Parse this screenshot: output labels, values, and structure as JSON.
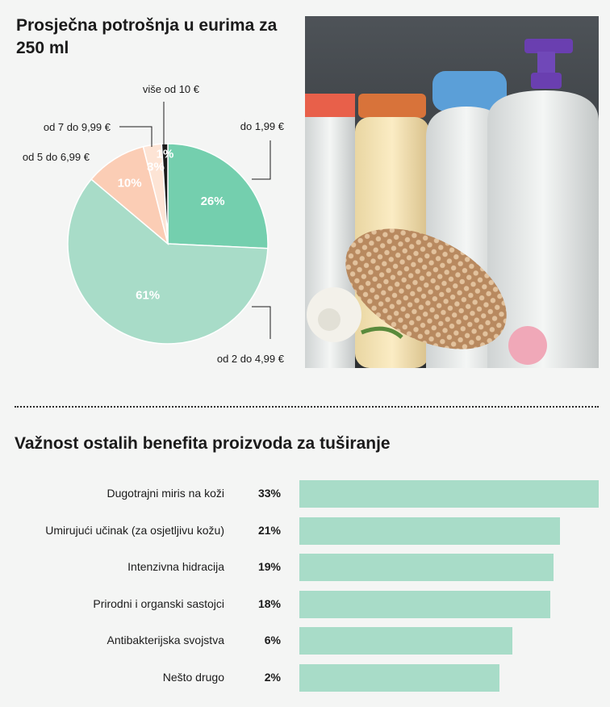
{
  "chart_data": [
    {
      "type": "pie",
      "title": "Prosječna potrošnja u eurima za 250 ml",
      "slices": [
        {
          "label": "do 1,99 €",
          "value": 26,
          "display": "26%",
          "color": "#74cfae"
        },
        {
          "label": "od 2 do 4,99 €",
          "value": 61,
          "display": "61%",
          "color": "#a8dcc8"
        },
        {
          "label": "od 5 do 6,99 €",
          "value": 10,
          "display": "10%",
          "color": "#fbcdb5"
        },
        {
          "label": "od 7 do 9,99 €",
          "value": 3,
          "display": "3%",
          "color": "#fde4d5"
        },
        {
          "label": "više od 10 €",
          "value": 1,
          "display": "1%",
          "color": "#1c1c1c"
        }
      ]
    },
    {
      "type": "bar",
      "title": "Važnost ostalih benefita proizvoda za tuširanje",
      "categories": [
        "Dugotrajni miris na koži",
        "Umirujući učinak (za osjetljivu kožu)",
        "Intenzivna hidracija",
        "Prirodni i organski sastojci",
        "Antibakterijska svojstva",
        "Nešto drugo"
      ],
      "values": [
        33,
        21,
        19,
        18,
        6,
        2
      ],
      "value_labels": [
        "33%",
        "21%",
        "19%",
        "18%",
        "6%",
        "2%"
      ],
      "color": "#a8dcc8"
    }
  ],
  "photo": {
    "description_icon": "shower-products-photo"
  }
}
